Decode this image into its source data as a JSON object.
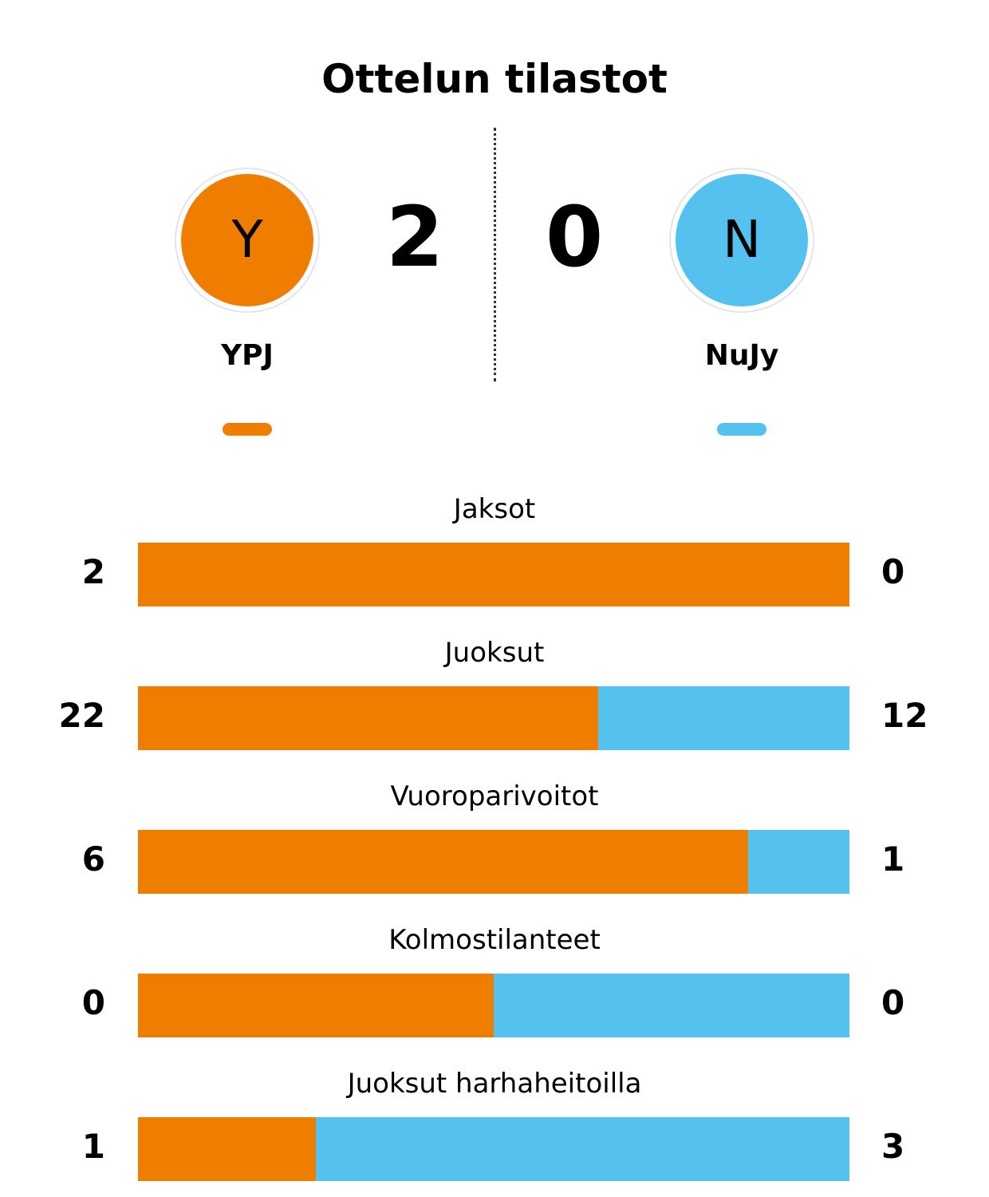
{
  "title": "Ottelun tilastot",
  "colors": {
    "home": "#EF7D00",
    "away": "#55C1EF"
  },
  "home": {
    "name": "YPJ",
    "initial": "Y",
    "score": "2"
  },
  "away": {
    "name": "NuJy",
    "initial": "N",
    "score": "0"
  },
  "chart_data": {
    "type": "bar",
    "orientation": "horizontal-stacked-share",
    "categories": [
      "Jaksot",
      "Juoksut",
      "Vuoroparivoitot",
      "Kolmostilanteet",
      "Juoksut harhaheitoilla"
    ],
    "series": [
      {
        "name": "YPJ",
        "color": "#EF7D00",
        "values": [
          2,
          22,
          6,
          0,
          1
        ]
      },
      {
        "name": "NuJy",
        "color": "#55C1EF",
        "values": [
          0,
          12,
          1,
          0,
          3
        ]
      }
    ]
  }
}
